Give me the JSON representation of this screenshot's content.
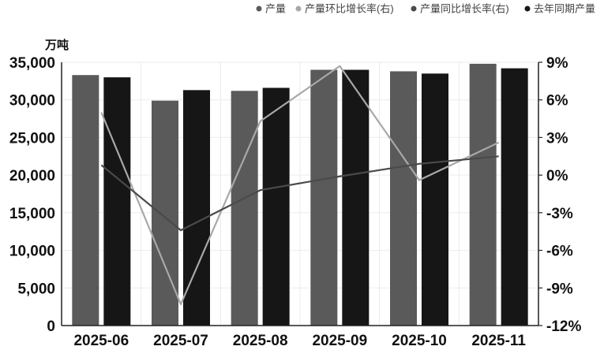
{
  "chart_data": {
    "type": "bar",
    "categories": [
      "2025-06",
      "2025-07",
      "2025-08",
      "2025-09",
      "2025-10",
      "2025-11"
    ],
    "series": [
      {
        "name": "产量",
        "kind": "bar",
        "axis": "left",
        "color": "#5a5a5a",
        "values": [
          33300,
          29900,
          31200,
          34000,
          33800,
          34800
        ]
      },
      {
        "name": "产量环比增长率(右)",
        "kind": "line",
        "axis": "right",
        "color": "#a8a8a8",
        "values": [
          5.0,
          -10.3,
          4.3,
          8.7,
          -0.4,
          2.6
        ]
      },
      {
        "name": "产量同比增长率(右)",
        "kind": "line",
        "axis": "right",
        "color": "#4a4a4a",
        "values": [
          0.8,
          -4.4,
          -1.2,
          -0.1,
          0.9,
          1.5
        ]
      },
      {
        "name": "去年同期产量",
        "kind": "bar",
        "axis": "left",
        "color": "#161616",
        "values": [
          33000,
          31300,
          31600,
          34000,
          33500,
          34200
        ]
      }
    ],
    "left_axis": {
      "unit": "万吨",
      "ylim": [
        0,
        35000
      ],
      "ticks": [
        "0",
        "5,000",
        "10,000",
        "15,000",
        "20,000",
        "25,000",
        "30,000",
        "35,000"
      ]
    },
    "right_axis": {
      "ylim": [
        -12,
        9
      ],
      "ticks": [
        "-12%",
        "-9%",
        "-6%",
        "-3%",
        "0%",
        "3%",
        "6%",
        "9%"
      ]
    },
    "legend_position": "top-right",
    "grid": true
  }
}
